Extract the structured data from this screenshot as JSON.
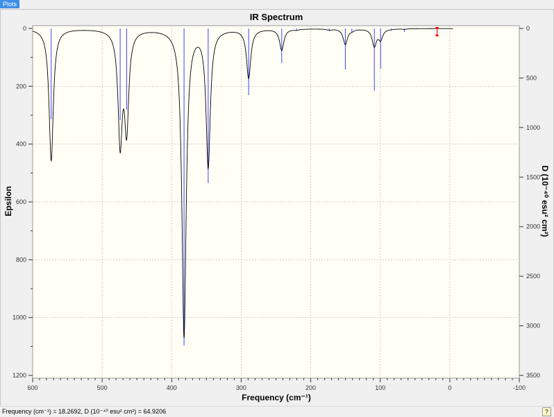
{
  "tab": {
    "label": "Plots"
  },
  "status": {
    "text": "Frequency (cm⁻¹) = 18.2692, D (10⁻⁴⁰ esu² cm²) = 64.9206",
    "icon": "help-icon"
  },
  "chart_data": {
    "type": "line",
    "title": "IR Spectrum",
    "xlabel": "Frequency (cm⁻¹)",
    "ylabel": "Epsilon",
    "y2label": "D (10⁻⁴⁰ esu² cm²)",
    "xlim": [
      600,
      -100
    ],
    "ylim": [
      0,
      1200
    ],
    "y2lim": [
      0,
      3500
    ],
    "y_inverted": true,
    "grid": true,
    "x_ticks": [
      "600",
      "500",
      "400",
      "300",
      "200",
      "100",
      "0",
      "-100"
    ],
    "y_ticks": [
      "0",
      "200",
      "400",
      "600",
      "800",
      "1000",
      "1200"
    ],
    "y2_ticks": [
      "0",
      "500",
      "1000",
      "1500",
      "2000",
      "2500",
      "3000",
      "3500"
    ],
    "series": [
      {
        "type": "stick",
        "axis": "y2",
        "color": "#4040ff",
        "frequencies": [
          573.3,
          474.1,
          464.8,
          382.2,
          347.5,
          289.3,
          241.7,
          220.4,
          173.4,
          150.2,
          140.8,
          108.5,
          99.5,
          84.2,
          65.2,
          18.27
        ],
        "intensities": [
          915,
          926,
          817,
          3199,
          1561,
          672,
          350,
          16,
          26,
          413,
          40,
          630,
          406,
          14,
          35,
          64.92
        ]
      },
      {
        "type": "line",
        "axis": "y",
        "color": "#000000",
        "x_range": [
          600,
          -4.5
        ]
      }
    ],
    "selected_point": {
      "frequency": 18.2692,
      "D": 64.9206,
      "color": "#ff0000"
    }
  }
}
